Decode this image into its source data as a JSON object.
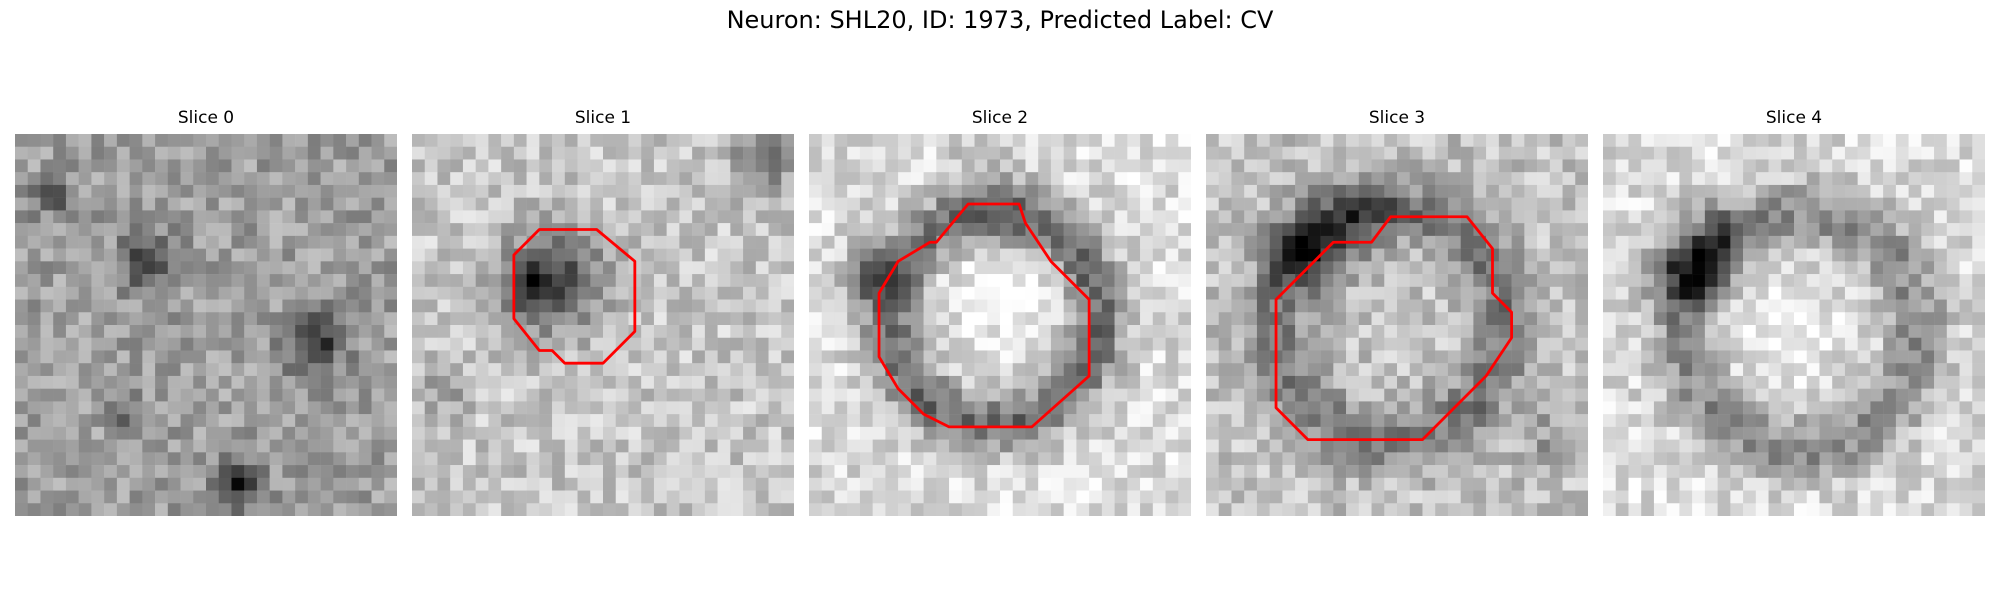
{
  "figure": {
    "title": "Neuron: SHL20, ID: 1973, Predicted Label: CV"
  },
  "slices": [
    {
      "title": "Slice 0",
      "has_contour": false,
      "seed": 11
    },
    {
      "title": "Slice 1",
      "has_contour": true,
      "seed": 23
    },
    {
      "title": "Slice 2",
      "has_contour": true,
      "seed": 37
    },
    {
      "title": "Slice 3",
      "has_contour": true,
      "seed": 41
    },
    {
      "title": "Slice 4",
      "has_contour": false,
      "seed": 59
    }
  ],
  "colors": {
    "contour": "#ff0000",
    "background": "#ffffff",
    "colormap": "gray"
  }
}
